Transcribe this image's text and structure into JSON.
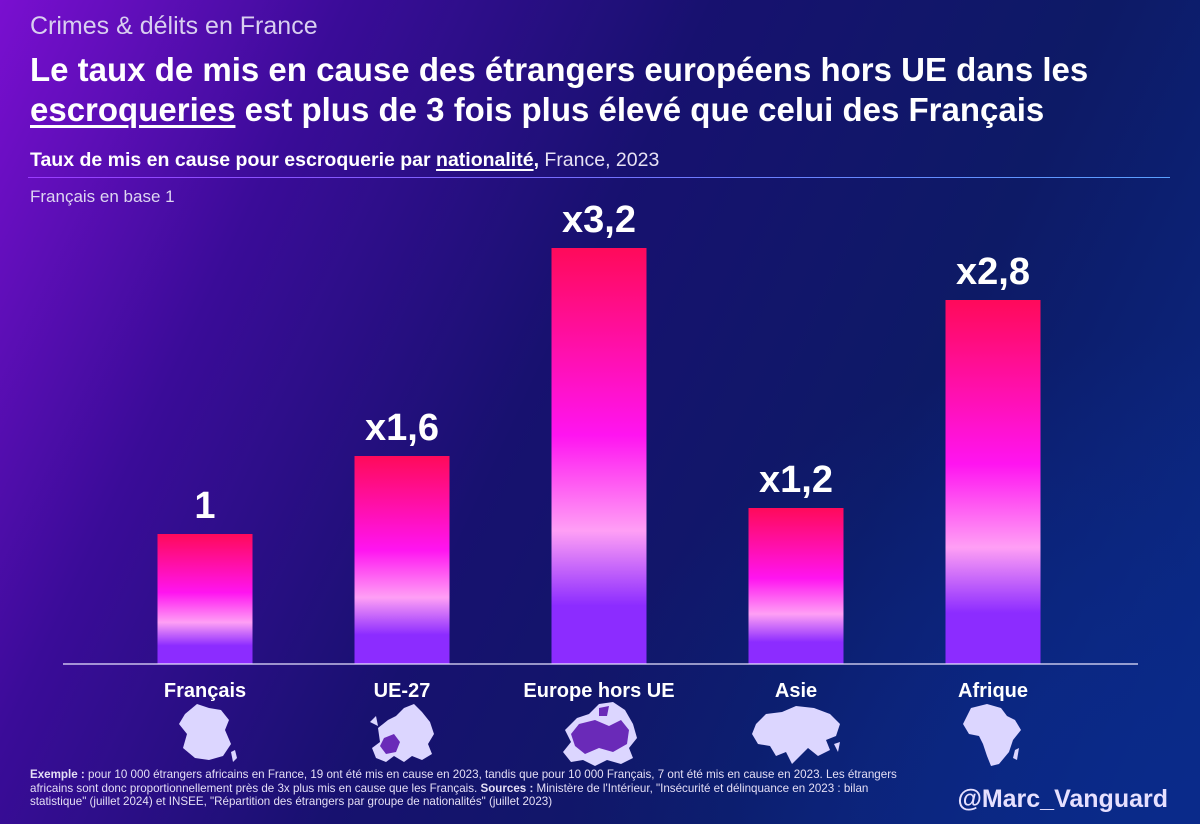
{
  "header": {
    "supertitle": "Crimes & délits en France",
    "title_part1": "Le taux de mis en cause des étrangers européens hors UE dans les",
    "title_underlined": "escroqueries",
    "title_part2": " est plus de 3 fois plus élevé que celui des Français"
  },
  "subtitle": {
    "bold": "Taux de mis en cause pour escroquerie par ",
    "underlined": "nationalité",
    "comma": ",",
    "plain": " France, 2023"
  },
  "base_note": "Français en base 1",
  "colors": {
    "bar_top": "#ff0a5a",
    "bar_mid": "#ff14f0",
    "bar_light": "#ff9ff5",
    "bar_bottom": "#8c2cff",
    "map_fill": "#dcd6ff",
    "europe_highlight": "#6a2ab8"
  },
  "chart_data": {
    "type": "bar",
    "title": "Taux de mis en cause pour escroquerie par nationalité, France, 2023",
    "xlabel": "",
    "ylabel": "Français en base 1",
    "categories": [
      "Français",
      "UE-27",
      "Europe hors UE",
      "Asie",
      "Afrique"
    ],
    "values": [
      1,
      1.6,
      3.2,
      1.2,
      2.8
    ],
    "data_labels": [
      "1",
      "x1,6",
      "x3,2",
      "x1,2",
      "x2,8"
    ],
    "icons": [
      "france-map-icon",
      "eu27-map-icon",
      "europe-non-eu-map-icon",
      "asia-map-icon",
      "africa-map-icon"
    ],
    "ylim": [
      0,
      3.2
    ],
    "grid": false,
    "legend": "none"
  },
  "footer": {
    "example_label": "Exemple :",
    "example_text": " pour 10 000 étrangers africains en France, 19 ont été mis en cause en 2023, tandis que pour 10 000 Français, 7 ont été mis en cause en 2023. Les étrangers africains sont donc proportionnellement près de 3x plus mis en cause que les Français. ",
    "sources_label": "Sources :",
    "sources_text": " Ministère de l'Intérieur, \"Insécurité et délinquance en 2023 : bilan statistique\" (juillet 2024) et INSEE, \"Répartition des étrangers par groupe de nationalités\" (juillet 2023)",
    "handle": "@Marc_Vanguard"
  }
}
